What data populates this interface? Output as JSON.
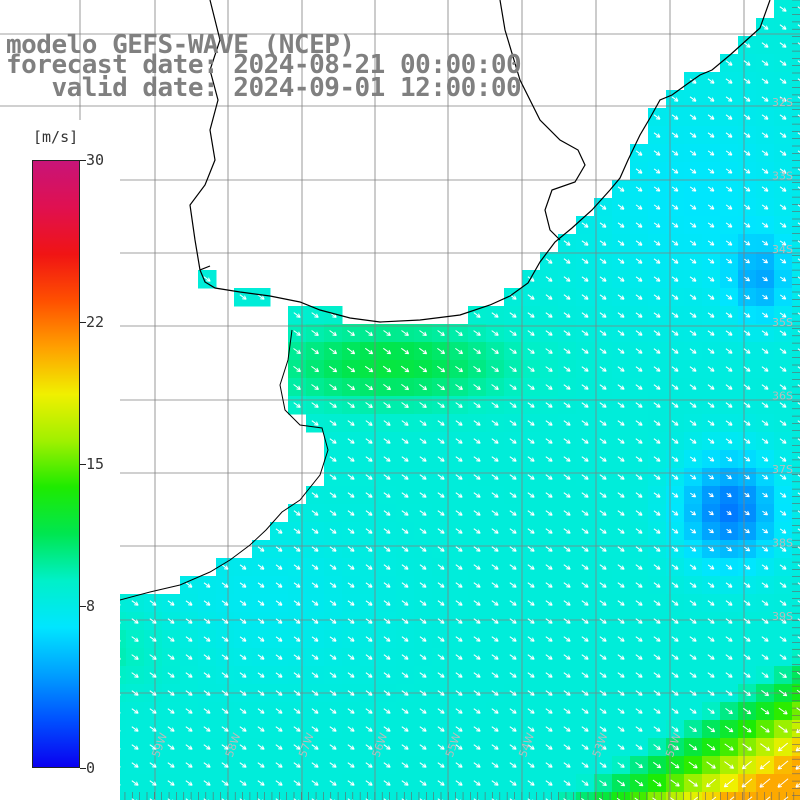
{
  "header": {
    "line1": "modelo GEFS-WAVE (NCEP)",
    "line2": "forecast date: 2024-08-21 00:00:00",
    "line3": "   valid date: 2024-09-01 12:00:00"
  },
  "colorbar": {
    "unit": "[m/s]",
    "labels": [
      {
        "text": "30",
        "value": 30
      },
      {
        "text": "22",
        "value": 22
      },
      {
        "text": "15",
        "value": 15
      },
      {
        "text": "8",
        "value": 8
      },
      {
        "text": "0",
        "value": 0
      }
    ],
    "min": 0,
    "max": 30,
    "colors": [
      "#0a00f0",
      "#0050ff",
      "#00a0ff",
      "#00e6ff",
      "#00f0c8",
      "#00e650",
      "#1eeb00",
      "#a0f000",
      "#f0f000",
      "#ffa000",
      "#ff5000",
      "#f01414",
      "#e01050",
      "#c81478"
    ]
  },
  "map": {
    "land_color": "#ffffff",
    "coast_color": "#000000",
    "grid_color": "#808080",
    "arrow_color": "#ffffff",
    "lat_labels": [
      "32S",
      "33S",
      "34S",
      "35S",
      "36S",
      "37S",
      "38S",
      "39S"
    ],
    "lon_labels": [
      "61W",
      "60W",
      "59W",
      "58W",
      "57W",
      "56W",
      "55W",
      "54W",
      "53W",
      "52W"
    ]
  }
}
